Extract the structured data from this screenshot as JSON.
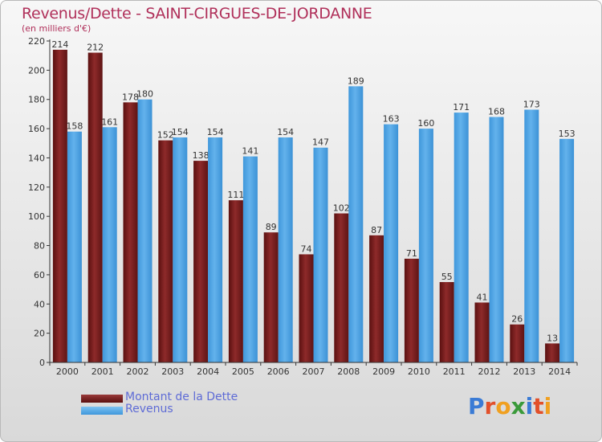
{
  "title": "Revenus/Dette - SAINT-CIRGUES-DE-JORDANNE",
  "subtitle": "(en milliers d'€)",
  "colors": {
    "dette": "#7a1d1d",
    "revenus": "#4ea3e3",
    "title": "#b0305a",
    "legend_text": "#5e6bd6"
  },
  "logo": {
    "text": "Proxiti",
    "letter_colors": [
      "#3a7bd5",
      "#e2502a",
      "#f0a020",
      "#3a9a3a",
      "#3a7bd5",
      "#e2502a",
      "#f0a020"
    ]
  },
  "chart_data": {
    "type": "bar",
    "categories": [
      "2000",
      "2001",
      "2002",
      "2003",
      "2004",
      "2005",
      "2006",
      "2007",
      "2008",
      "2009",
      "2010",
      "2011",
      "2012",
      "2013",
      "2014"
    ],
    "series": [
      {
        "name": "Montant de la Dette",
        "color": "#7a1d1d",
        "values": [
          214,
          212,
          178,
          152,
          138,
          111,
          89,
          74,
          102,
          87,
          71,
          55,
          41,
          26,
          13
        ]
      },
      {
        "name": "Revenus",
        "color": "#4ea3e3",
        "values": [
          158,
          161,
          180,
          154,
          154,
          141,
          154,
          147,
          189,
          163,
          160,
          171,
          168,
          173,
          153
        ]
      }
    ],
    "ylim": [
      0,
      220
    ],
    "yticks": [
      0,
      20,
      40,
      60,
      80,
      100,
      120,
      140,
      160,
      180,
      200,
      220
    ],
    "grid": false,
    "legend_position": "bottom-left"
  }
}
